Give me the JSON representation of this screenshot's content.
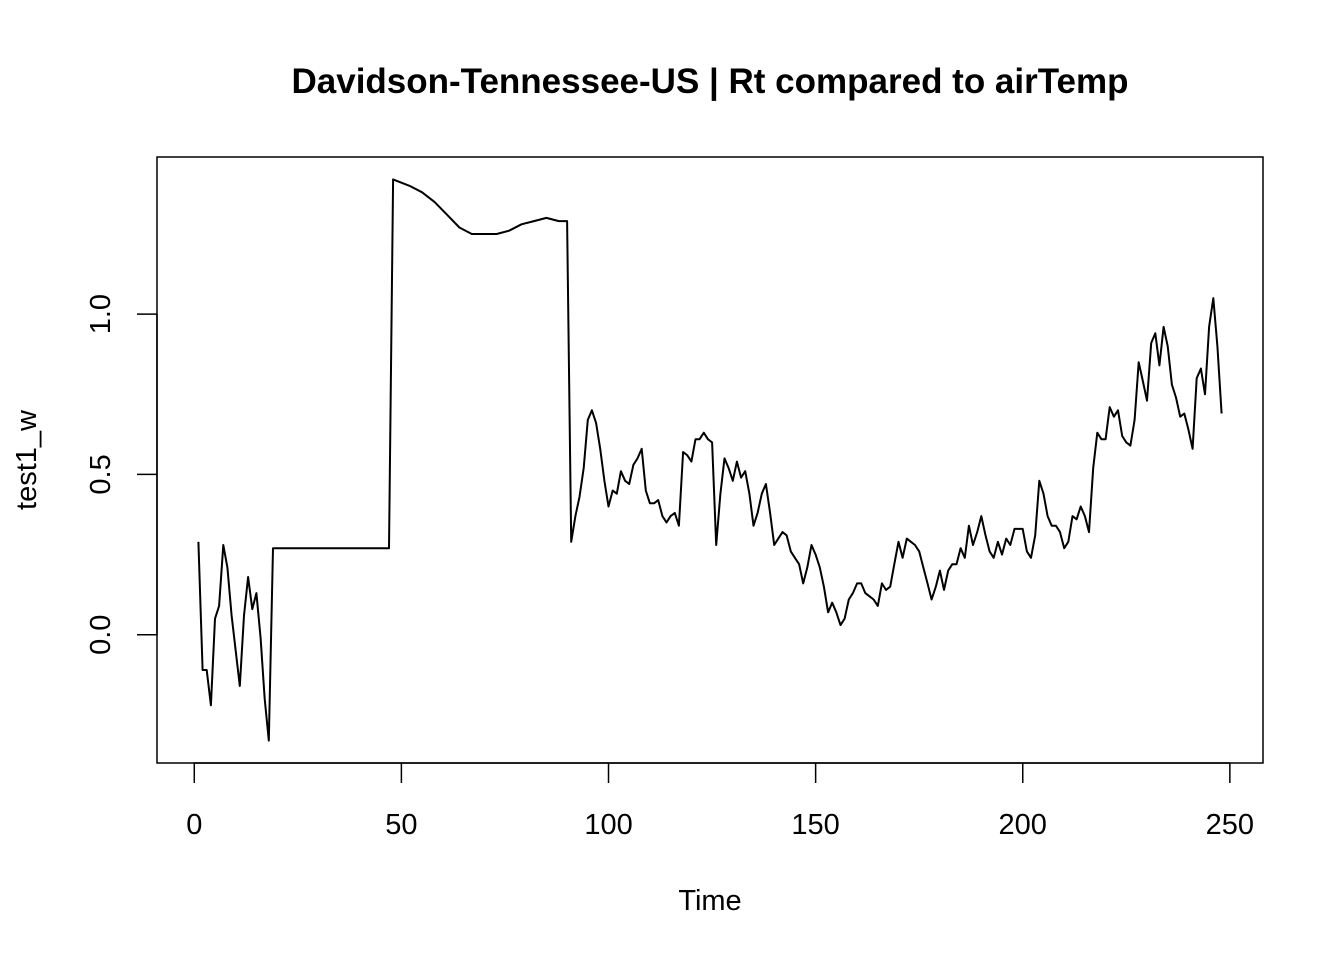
{
  "chart_data": {
    "type": "line",
    "title": "Davidson-Tennessee-US | Rt compared to airTemp",
    "xlabel": "Time",
    "ylabel": "test1_w",
    "xlim": [
      -9,
      258
    ],
    "ylim": [
      -0.4,
      1.49
    ],
    "x_ticks": [
      0,
      50,
      100,
      150,
      200,
      250
    ],
    "x_tick_labels": [
      "0",
      "50",
      "100",
      "150",
      "200",
      "250"
    ],
    "y_ticks": [
      0.0,
      0.5,
      1.0
    ],
    "y_tick_labels": [
      "0.0",
      "0.5",
      "1.0"
    ],
    "grid": false,
    "line_color": "#000000",
    "series": [
      {
        "x": [
          1,
          2,
          3,
          4,
          5,
          6,
          7,
          8,
          9,
          10,
          11,
          12,
          13,
          14,
          15,
          16,
          17,
          18,
          19,
          47,
          48,
          50,
          52,
          55,
          58,
          61,
          64,
          67,
          70,
          73,
          76,
          79,
          82,
          85,
          88,
          90,
          91,
          92,
          93,
          94,
          95,
          96,
          97,
          98,
          99,
          100,
          101,
          102,
          103,
          104,
          105,
          106,
          107,
          108,
          109,
          110,
          111,
          112,
          113,
          114,
          115,
          116,
          117,
          118,
          119,
          120,
          121,
          122,
          123,
          124,
          125,
          126,
          127,
          128,
          129,
          130,
          131,
          132,
          133,
          134,
          135,
          136,
          137,
          138,
          139,
          140,
          141,
          142,
          143,
          144,
          145,
          146,
          147,
          148,
          149,
          150,
          151,
          152,
          153,
          154,
          155,
          156,
          157,
          158,
          159,
          160,
          161,
          162,
          163,
          164,
          165,
          166,
          167,
          168,
          169,
          170,
          171,
          172,
          173,
          174,
          175,
          176,
          177,
          178,
          179,
          180,
          181,
          182,
          183,
          184,
          185,
          186,
          187,
          188,
          189,
          190,
          191,
          192,
          193,
          194,
          195,
          196,
          197,
          198,
          199,
          200,
          201,
          202,
          203,
          204,
          205,
          206,
          207,
          208,
          209,
          210,
          211,
          212,
          213,
          214,
          215,
          216,
          217,
          218,
          219,
          220,
          221,
          222,
          223,
          224,
          225,
          226,
          227,
          228,
          229,
          230,
          231,
          232,
          233,
          234,
          235,
          236,
          237,
          238,
          239,
          240,
          241,
          242,
          243,
          244,
          245,
          246,
          247,
          248
        ],
        "values": [
          0.29,
          -0.11,
          -0.11,
          -0.22,
          0.05,
          0.09,
          0.28,
          0.21,
          0.06,
          -0.05,
          -0.16,
          0.06,
          0.18,
          0.08,
          0.13,
          -0.01,
          -0.2,
          -0.33,
          0.27,
          0.27,
          1.42,
          1.41,
          1.4,
          1.38,
          1.35,
          1.31,
          1.27,
          1.25,
          1.25,
          1.25,
          1.26,
          1.28,
          1.29,
          1.3,
          1.29,
          1.29,
          0.29,
          0.37,
          0.43,
          0.52,
          0.67,
          0.7,
          0.66,
          0.58,
          0.48,
          0.4,
          0.45,
          0.44,
          0.51,
          0.48,
          0.47,
          0.53,
          0.55,
          0.58,
          0.45,
          0.41,
          0.41,
          0.42,
          0.37,
          0.35,
          0.37,
          0.38,
          0.34,
          0.57,
          0.56,
          0.54,
          0.61,
          0.61,
          0.63,
          0.61,
          0.6,
          0.28,
          0.44,
          0.55,
          0.52,
          0.48,
          0.54,
          0.49,
          0.51,
          0.44,
          0.34,
          0.38,
          0.44,
          0.47,
          0.38,
          0.28,
          0.3,
          0.32,
          0.31,
          0.26,
          0.24,
          0.22,
          0.16,
          0.21,
          0.28,
          0.25,
          0.21,
          0.15,
          0.07,
          0.1,
          0.07,
          0.03,
          0.05,
          0.11,
          0.13,
          0.16,
          0.16,
          0.13,
          0.12,
          0.11,
          0.09,
          0.16,
          0.14,
          0.15,
          0.22,
          0.29,
          0.24,
          0.3,
          0.29,
          0.28,
          0.26,
          0.21,
          0.16,
          0.11,
          0.15,
          0.2,
          0.14,
          0.2,
          0.22,
          0.22,
          0.27,
          0.24,
          0.34,
          0.28,
          0.32,
          0.37,
          0.31,
          0.26,
          0.24,
          0.29,
          0.25,
          0.3,
          0.28,
          0.33,
          0.33,
          0.33,
          0.26,
          0.24,
          0.31,
          0.48,
          0.44,
          0.37,
          0.34,
          0.34,
          0.32,
          0.27,
          0.29,
          0.37,
          0.36,
          0.4,
          0.37,
          0.32,
          0.52,
          0.63,
          0.61,
          0.61,
          0.71,
          0.68,
          0.7,
          0.62,
          0.6,
          0.59,
          0.67,
          0.85,
          0.79,
          0.73,
          0.91,
          0.94,
          0.84,
          0.96,
          0.9,
          0.78,
          0.74,
          0.68,
          0.69,
          0.64,
          0.58,
          0.8,
          0.83,
          0.75,
          0.96,
          1.05,
          0.9,
          0.69
        ]
      }
    ]
  }
}
